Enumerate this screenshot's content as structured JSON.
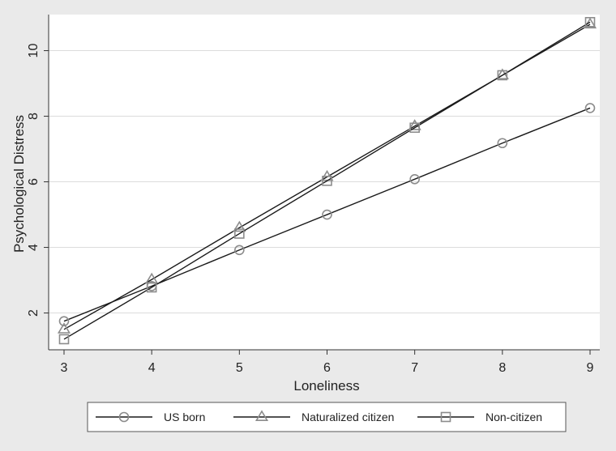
{
  "chart_data": {
    "type": "line",
    "title": "",
    "xlabel": "Loneliness",
    "ylabel": "Psychological Distress",
    "x": [
      3,
      4,
      5,
      6,
      7,
      8,
      9
    ],
    "xlim": [
      3,
      9
    ],
    "ylim": [
      1.1,
      11.1
    ],
    "xticks": [
      "3",
      "4",
      "5",
      "6",
      "7",
      "8",
      "9"
    ],
    "yticks": [
      "2",
      "4",
      "6",
      "8",
      "10"
    ],
    "ytick_values": [
      2,
      4,
      6,
      8,
      10
    ],
    "grid": "horizontal",
    "legend_position": "bottom",
    "series": [
      {
        "name": "US born",
        "marker": "circle",
        "values": [
          1.75,
          2.82,
          3.92,
          5.0,
          6.08,
          7.18,
          8.25
        ]
      },
      {
        "name": "Naturalized citizen",
        "marker": "triangle",
        "values": [
          1.5,
          3.02,
          4.6,
          6.15,
          7.7,
          9.25,
          10.8
        ]
      },
      {
        "name": "Non-citizen",
        "marker": "square",
        "values": [
          1.2,
          2.78,
          4.42,
          6.03,
          7.65,
          9.25,
          10.87
        ]
      }
    ]
  },
  "colors": {
    "background": "#eaeaea",
    "plot_background": "#ffffff",
    "line": "#1a1a1a",
    "marker": "#8c8c8c",
    "grid": "#dcdcdc"
  }
}
